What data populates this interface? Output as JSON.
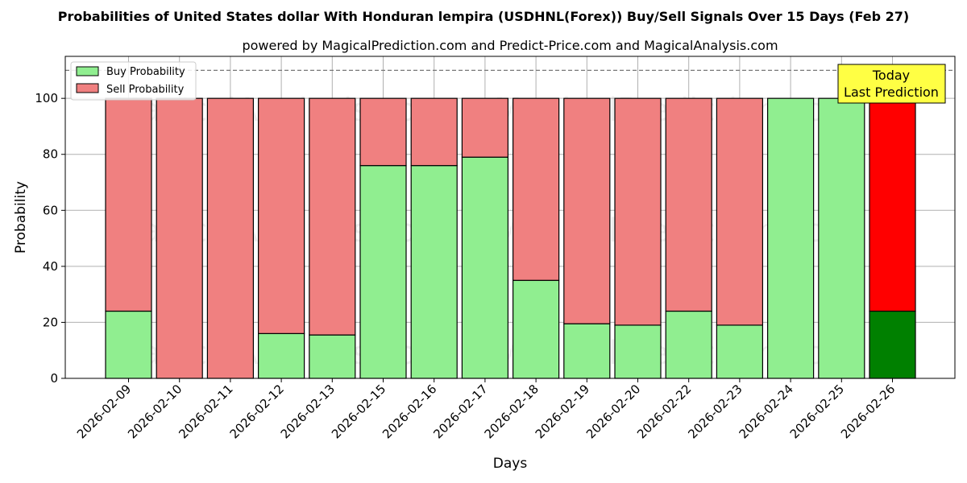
{
  "chart_data": {
    "type": "bar",
    "stacked": true,
    "title": "Probabilities of United States dollar With Honduran lempira (USDHNL(Forex)) Buy/Sell Signals Over 15 Days (Feb 27)",
    "subtitle": "powered by MagicalPrediction.com and Predict-Price.com and MagicalAnalysis.com",
    "xlabel": "Days",
    "ylabel": "Probability",
    "ylim": [
      0,
      115
    ],
    "yticks": [
      0,
      20,
      40,
      60,
      80,
      100
    ],
    "reference_line": 110,
    "grid": true,
    "legend_position": "top-left",
    "categories": [
      "2026-02-09",
      "2026-02-10",
      "2026-02-11",
      "2026-02-12",
      "2026-02-13",
      "2026-02-15",
      "2026-02-16",
      "2026-02-17",
      "2026-02-18",
      "2026-02-19",
      "2026-02-20",
      "2026-02-22",
      "2026-02-23",
      "2026-02-24",
      "2026-02-25",
      "2026-02-26"
    ],
    "series": [
      {
        "name": "Buy Probability",
        "color": "#90ee90",
        "highlight_color": "#008000",
        "values": [
          24,
          0,
          0,
          16,
          15.5,
          76,
          76,
          79,
          35,
          19.5,
          19,
          24,
          19,
          100,
          100,
          24
        ]
      },
      {
        "name": "Sell Probability",
        "color": "#f08080",
        "highlight_color": "#ff0000",
        "values": [
          76,
          100,
          100,
          84,
          84.5,
          24,
          24,
          21,
          65,
          80.5,
          81,
          76,
          81,
          0,
          0,
          76
        ]
      }
    ],
    "highlight_index": 15,
    "annotation": {
      "line1": "Today",
      "line2": "Last Prediction",
      "bg_color": "#ffff44"
    },
    "watermarks": [
      "MagicalAnalysis.com",
      "MagicalPrediction.com"
    ]
  }
}
